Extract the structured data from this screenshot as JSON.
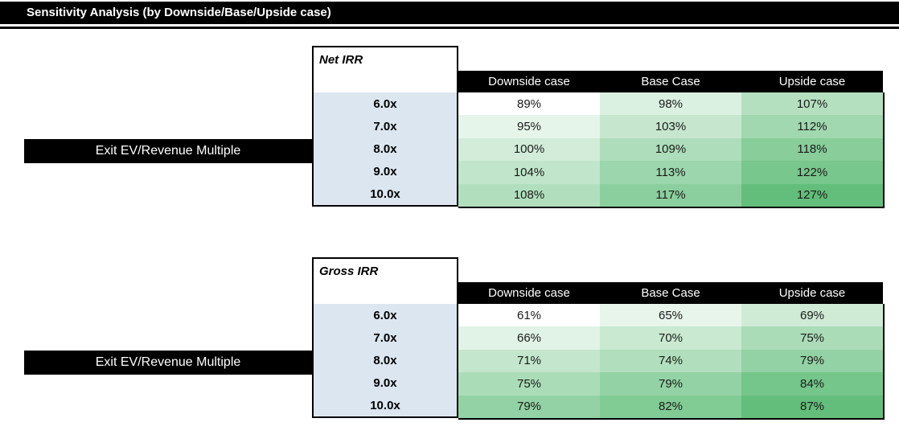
{
  "title": "Sensitivity Analysis (by Downside/Base/Upside case)",
  "colors": {
    "title_bg": "#000000",
    "title_text": "#FFFFFF",
    "header_bg": "#000000",
    "header_text": "#FFFFFF",
    "row_label_bg": "#DCE6F1",
    "scale_min_color": "#FFFFFF",
    "scale_max_color": "#63BE7B",
    "cell_text": "#1A1A1A"
  },
  "chart_data": [
    {
      "type": "heatmap",
      "title": "Net IRR",
      "row_axis_label": "Exit EV/Revenue Multiple",
      "columns": [
        "Downside case",
        "Base Case",
        "Upside case"
      ],
      "rows": [
        "6.0x",
        "7.0x",
        "8.0x",
        "9.0x",
        "10.0x"
      ],
      "values": [
        [
          89,
          98,
          107
        ],
        [
          95,
          103,
          112
        ],
        [
          100,
          109,
          118
        ],
        [
          104,
          113,
          122
        ],
        [
          108,
          117,
          127
        ]
      ],
      "value_suffix": "%",
      "color_scale": {
        "min": 89,
        "max": 127,
        "min_color": "#FFFFFF",
        "max_color": "#63BE7B"
      }
    },
    {
      "type": "heatmap",
      "title": "Gross IRR",
      "row_axis_label": "Exit EV/Revenue Multiple",
      "columns": [
        "Downside case",
        "Base Case",
        "Upside case"
      ],
      "rows": [
        "6.0x",
        "7.0x",
        "8.0x",
        "9.0x",
        "10.0x"
      ],
      "values": [
        [
          61,
          65,
          69
        ],
        [
          66,
          70,
          75
        ],
        [
          71,
          74,
          79
        ],
        [
          75,
          79,
          84
        ],
        [
          79,
          82,
          87
        ]
      ],
      "value_suffix": "%",
      "color_scale": {
        "min": 61,
        "max": 87,
        "min_color": "#FFFFFF",
        "max_color": "#63BE7B"
      }
    }
  ]
}
